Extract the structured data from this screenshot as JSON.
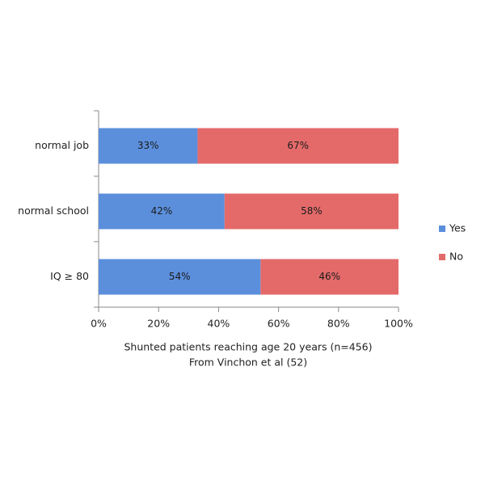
{
  "chart_data": {
    "type": "stacked_barh",
    "categories": [
      "normal job",
      "normal school",
      "IQ ≥ 80"
    ],
    "series": [
      {
        "name": "Yes",
        "color": "#5b8fdc",
        "values": [
          33,
          42,
          54
        ],
        "value_labels": [
          "33%",
          "42%",
          "54%"
        ]
      },
      {
        "name": "No",
        "color": "#e46a6a",
        "values": [
          67,
          58,
          46
        ],
        "value_labels": [
          "67%",
          "58%",
          "46%"
        ]
      }
    ],
    "xlim": [
      0,
      100
    ],
    "xticks": [
      {
        "value": 0,
        "label": "0%"
      },
      {
        "value": 20,
        "label": "20%"
      },
      {
        "value": 40,
        "label": "40%"
      },
      {
        "value": 60,
        "label": "60%"
      },
      {
        "value": 80,
        "label": "80%"
      },
      {
        "value": 100,
        "label": "100%"
      }
    ],
    "xlabel": [
      "Shunted patients reaching age 20 years (n=456)",
      "From Vinchon et al (52)"
    ],
    "legend": "right"
  }
}
